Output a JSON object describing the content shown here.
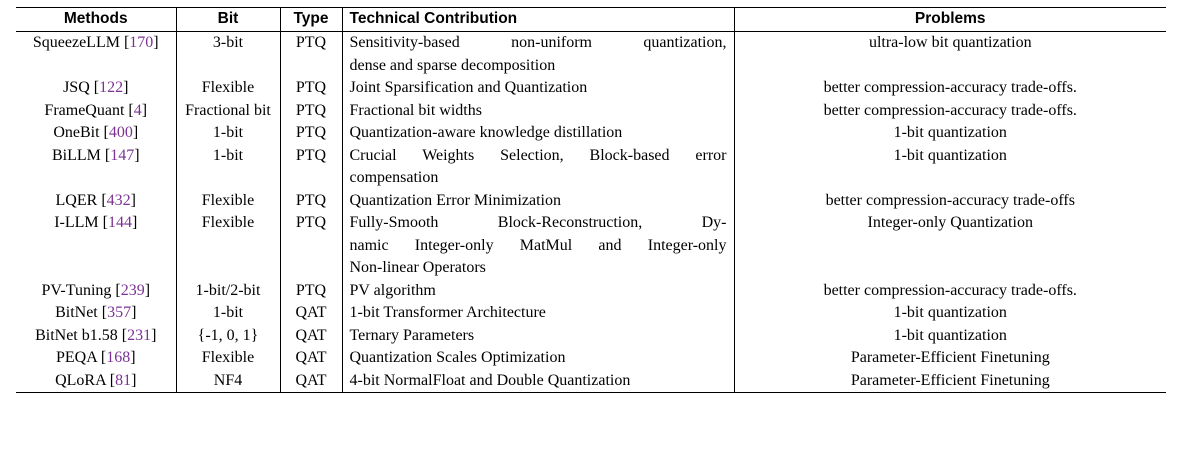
{
  "table": {
    "headers": {
      "methods": "Methods",
      "bit": "Bit",
      "type": "Type",
      "contribution": "Technical Contribution",
      "problems": "Problems"
    },
    "rows": [
      {
        "method": "SqueezeLLM",
        "ref": "170",
        "bit": "3-bit",
        "type": "PTQ",
        "contribution_lines": [
          "Sensitivity-based non-uniform quantization,",
          "dense and sparse decomposition"
        ],
        "problems": "ultra-low bit quantization"
      },
      {
        "method": "JSQ",
        "ref": "122",
        "bit": "Flexible",
        "type": "PTQ",
        "contribution_lines": [
          "Joint Sparsification and Quantization"
        ],
        "problems": "better compression-accuracy trade-offs."
      },
      {
        "method": "FrameQuant",
        "ref": "4",
        "bit": "Fractional bit",
        "type": "PTQ",
        "contribution_lines": [
          "Fractional bit widths"
        ],
        "problems": "better compression-accuracy trade-offs."
      },
      {
        "method": "OneBit",
        "ref": "400",
        "bit": "1-bit",
        "type": "PTQ",
        "contribution_lines": [
          "Quantization-aware knowledge distillation"
        ],
        "problems": "1-bit quantization"
      },
      {
        "method": "BiLLM",
        "ref": "147",
        "bit": "1-bit",
        "type": "PTQ",
        "contribution_lines": [
          "Crucial Weights Selection, Block-based error",
          "compensation"
        ],
        "problems": "1-bit quantization"
      },
      {
        "method": "LQER",
        "ref": "432",
        "bit": "Flexible",
        "type": "PTQ",
        "contribution_lines": [
          "Quantization Error Minimization"
        ],
        "problems": "better compression-accuracy trade-offs"
      },
      {
        "method": "I-LLM",
        "ref": "144",
        "bit": "Flexible",
        "type": "PTQ",
        "contribution_lines": [
          "Fully-Smooth Block-Reconstruction, Dy-",
          "namic Integer-only MatMul and Integer-only",
          "Non-linear Operators"
        ],
        "problems": "Integer-only Quantization"
      },
      {
        "method": "PV-Tuning",
        "ref": "239",
        "bit": "1-bit/2-bit",
        "type": "PTQ",
        "contribution_lines": [
          "PV algorithm"
        ],
        "problems": "better compression-accuracy trade-offs."
      },
      {
        "method": "BitNet",
        "ref": "357",
        "bit": "1-bit",
        "type": "QAT",
        "contribution_lines": [
          "1-bit Transformer Architecture"
        ],
        "problems": "1-bit quantization"
      },
      {
        "method": "BitNet b1.58",
        "ref": "231",
        "bit": "{-1, 0, 1}",
        "type": "QAT",
        "contribution_lines": [
          "Ternary Parameters"
        ],
        "problems": "1-bit quantization"
      },
      {
        "method": "PEQA",
        "ref": "168",
        "bit": "Flexible",
        "type": "QAT",
        "contribution_lines": [
          "Quantization Scales Optimization"
        ],
        "problems": "Parameter-Efficient Finetuning"
      },
      {
        "method": "QLoRA",
        "ref": "81",
        "bit": "NF4",
        "type": "QAT",
        "contribution_lines": [
          "4-bit NormalFloat and Double Quantization"
        ],
        "problems": "Parameter-Efficient Finetuning"
      }
    ]
  },
  "colors": {
    "reference_link": "#7b3294",
    "rule": "#000000",
    "text": "#000000"
  }
}
